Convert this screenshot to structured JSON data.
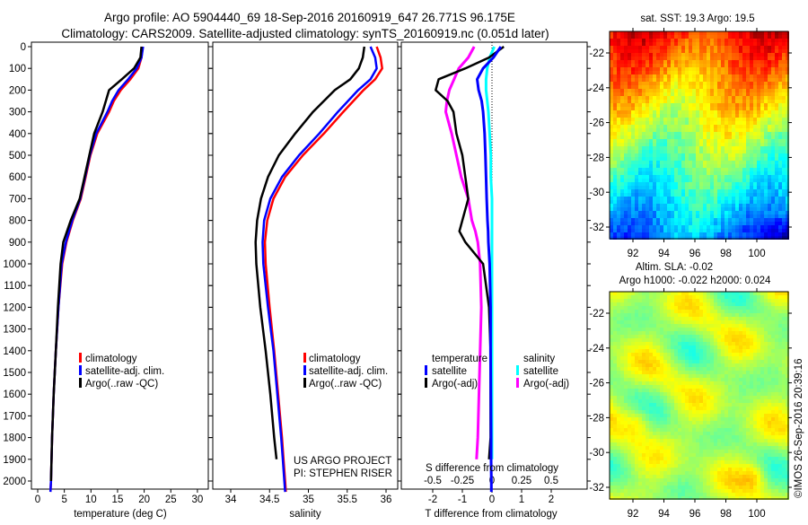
{
  "title": {
    "line1": "Argo profile: AO 5904440_69 18-Sep-2016 20160919_647 26.771S 96.175E",
    "line2": "Climatology: CARS2009. Satellite-adjusted climatology: synTS_20160919.nc (0.051d later)"
  },
  "colors": {
    "climatology": "#ff0000",
    "satellite": "#0000ff",
    "argo": "#000000",
    "sal_satellite": "#00ffff",
    "sal_argo": "#ff00ff"
  },
  "chart_data": [
    {
      "type": "line",
      "name": "temperature",
      "xlabel": "temperature (deg C)",
      "xlim": [
        -1.2,
        32
      ],
      "xticks": [
        "0",
        "5",
        "10",
        "15",
        "20",
        "25",
        "30"
      ],
      "ylim": [
        2037,
        -20
      ],
      "yticks": [
        "0",
        "100",
        "200",
        "300",
        "400",
        "500",
        "600",
        "700",
        "800",
        "900",
        "1000",
        "1100",
        "1200",
        "1300",
        "1400",
        "1500",
        "1600",
        "1700",
        "1800",
        "1900",
        "2000"
      ],
      "legend": [
        "climatology",
        "satellite-adj. clim.",
        "Argo(..raw -QC)"
      ],
      "depth": [
        0,
        50,
        100,
        150,
        200,
        250,
        300,
        400,
        500,
        600,
        700,
        800,
        900,
        1000,
        1200,
        1400,
        1600,
        1800,
        2000,
        2050
      ],
      "series": [
        {
          "name": "climatology",
          "values": [
            19.7,
            19.5,
            18.9,
            17.4,
            15.6,
            14.3,
            13.4,
            11.2,
            9.9,
            9.0,
            8.1,
            6.6,
            5.4,
            4.6,
            3.9,
            3.4,
            3.0,
            2.7,
            2.5,
            2.4
          ]
        },
        {
          "name": "satellite-adj. clim.",
          "values": [
            19.8,
            19.5,
            18.6,
            17.0,
            15.2,
            14.0,
            13.1,
            11.0,
            9.8,
            8.9,
            8.0,
            6.5,
            5.3,
            4.5,
            3.9,
            3.4,
            3.0,
            2.7,
            2.5,
            2.4
          ]
        },
        {
          "name": "Argo(..raw -QC)",
          "values": [
            19.5,
            19.3,
            18.1,
            15.8,
            13.4,
            12.8,
            12.2,
            10.6,
            9.7,
            8.8,
            7.9,
            6.2,
            4.8,
            4.3,
            3.8,
            3.4,
            3.0,
            2.7,
            2.5,
            null
          ]
        }
      ]
    },
    {
      "type": "line",
      "name": "salinity",
      "xlabel": "salinity",
      "xlim": [
        33.77,
        36.15
      ],
      "xticks": [
        "34",
        "34.5",
        "35",
        "35.5",
        "36"
      ],
      "legend": [
        "climatology",
        "satellite-adj. clim.",
        "Argo(..raw -QC)"
      ],
      "credit1": "US ARGO PROJECT",
      "credit2": "PI: STEPHEN RISER",
      "depth": [
        0,
        50,
        100,
        150,
        200,
        300,
        400,
        500,
        600,
        700,
        800,
        900,
        1000,
        1200,
        1400,
        1600,
        1800,
        1900,
        2000,
        2050
      ],
      "series": [
        {
          "name": "climatology",
          "values": [
            35.88,
            35.93,
            35.95,
            35.86,
            35.71,
            35.45,
            35.2,
            34.93,
            34.7,
            34.55,
            34.47,
            34.44,
            34.45,
            34.5,
            34.56,
            34.61,
            34.66,
            34.68,
            34.7,
            34.71
          ]
        },
        {
          "name": "satellite-adj. clim.",
          "values": [
            35.8,
            35.86,
            35.88,
            35.8,
            35.64,
            35.38,
            35.14,
            34.88,
            34.66,
            34.51,
            34.43,
            34.41,
            34.42,
            34.48,
            34.55,
            34.6,
            34.65,
            34.67,
            34.69,
            34.7
          ]
        },
        {
          "name": "Argo(..raw -QC)",
          "values": [
            35.72,
            35.7,
            35.65,
            35.54,
            35.34,
            35.06,
            34.83,
            34.62,
            34.48,
            34.39,
            34.34,
            34.32,
            34.33,
            34.38,
            34.45,
            34.51,
            34.56,
            34.59,
            null,
            null
          ]
        }
      ]
    },
    {
      "type": "line",
      "name": "differences",
      "xlabel": "T difference from climatology",
      "xlabel2": "S difference from climatology",
      "xlim": [
        -2.9,
        3.2
      ],
      "xticks": [
        "-2",
        "-1",
        "0",
        "1",
        "2"
      ],
      "xticks2": [
        "-0.5",
        "-0.25",
        "0",
        "0.25",
        "0.5"
      ],
      "legend_titles": [
        "temperature",
        "salinity"
      ],
      "legend": [
        "satellite",
        "Argo(-adj)",
        "satellite",
        "Argo(-adj)"
      ],
      "depth": [
        0,
        50,
        100,
        150,
        200,
        250,
        300,
        400,
        500,
        600,
        700,
        800,
        850,
        900,
        1000,
        1200,
        1400,
        1600,
        1800,
        1900,
        2000,
        2050
      ],
      "series": [
        {
          "name": "T satellite",
          "values": [
            0.3,
            0.05,
            -0.3,
            -0.5,
            -0.45,
            -0.35,
            -0.3,
            -0.25,
            -0.22,
            -0.2,
            -0.18,
            -0.15,
            -0.13,
            -0.12,
            -0.08,
            -0.05,
            -0.05,
            -0.04,
            -0.03,
            -0.03,
            -0.02,
            -0.02
          ]
        },
        {
          "name": "T Argo(-adj)",
          "values": [
            0.4,
            -0.1,
            -0.9,
            -1.8,
            -1.9,
            -1.5,
            -1.3,
            -1.2,
            -1.0,
            -0.9,
            -0.8,
            -1.0,
            -1.1,
            -0.9,
            -0.3,
            -0.1,
            -0.05,
            -0.05,
            -0.05,
            -0.1,
            null,
            null
          ]
        },
        {
          "name": "S satellite",
          "values": [
            0.02,
            -0.02,
            -0.04,
            -0.05,
            -0.05,
            -0.04,
            -0.03,
            -0.02,
            -0.01,
            -0.01,
            0.0,
            0.0,
            0.0,
            0.0,
            0.0,
            0.0,
            0.0,
            0.0,
            0.0,
            0.0,
            null,
            null
          ]
        },
        {
          "name": "S Argo(-adj)",
          "values": [
            -0.15,
            -0.2,
            -0.28,
            -0.32,
            -0.36,
            -0.38,
            -0.39,
            -0.34,
            -0.3,
            -0.26,
            -0.2,
            -0.17,
            -0.14,
            -0.12,
            -0.1,
            -0.09,
            -0.1,
            -0.11,
            -0.12,
            -0.13,
            null,
            null
          ]
        }
      ]
    }
  ],
  "maps": [
    {
      "title": "sat. SST: 19.3 Argo: 19.5",
      "xticks": [
        "92",
        "94",
        "96",
        "98",
        "100"
      ],
      "yticks": [
        "-22",
        "-24",
        "-26",
        "-28",
        "-30",
        "-32"
      ],
      "lon": [
        92,
        100
      ],
      "lat": [
        -22,
        -32
      ]
    },
    {
      "title1": "Altim. SLA: -0.02",
      "title2": "Argo h1000: -0.022 h2000: 0.024",
      "xticks": [
        "92",
        "94",
        "96",
        "98",
        "100"
      ],
      "yticks": [
        "-22",
        "-24",
        "-26",
        "-28",
        "-30",
        "-32"
      ]
    }
  ],
  "footer": "©IMOS 26-Sep-2016 20:39:16"
}
